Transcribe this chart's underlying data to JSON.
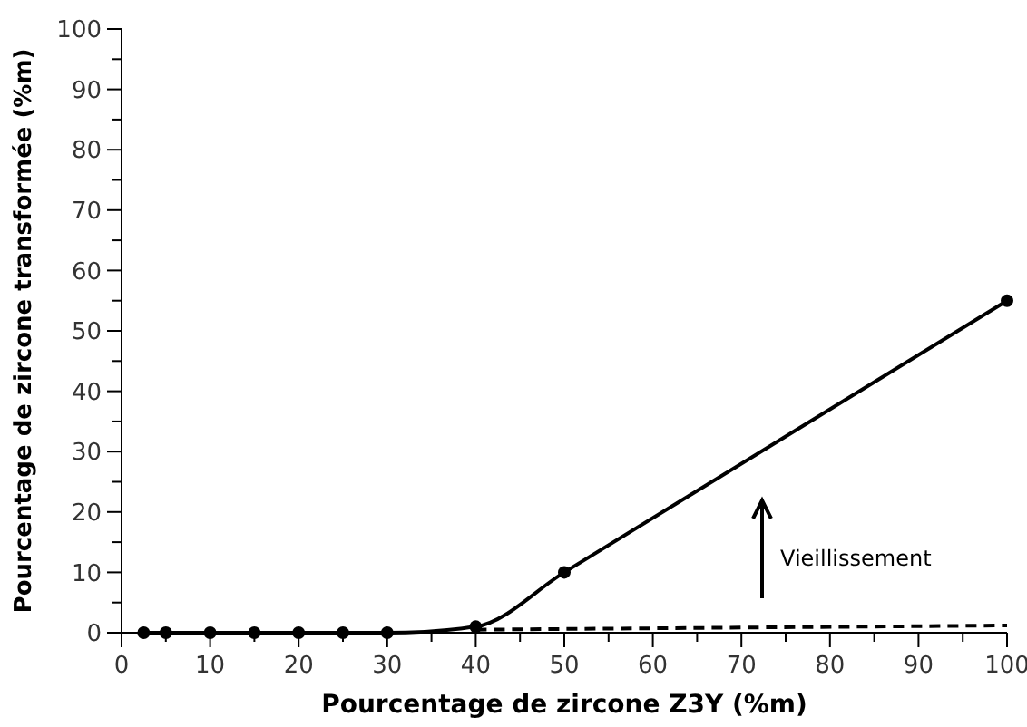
{
  "chart_data": {
    "type": "line",
    "xlabel": "Pourcentage de zircone Z3Y (%m)",
    "ylabel": "Pourcentage de zircone transformée (%m)",
    "xlim": [
      0,
      100
    ],
    "ylim": [
      0,
      100
    ],
    "xticks": [
      0,
      {
        "value": 5,
        "label": null
      },
      10,
      {
        "value": 15,
        "label": null
      },
      20,
      {
        "value": 25,
        "label": null
      },
      30,
      {
        "value": 35,
        "label": null
      },
      40,
      {
        "value": 45,
        "label": null
      },
      50,
      {
        "value": 55,
        "label": null
      },
      60,
      {
        "value": 65,
        "label": null
      },
      70,
      {
        "value": 75,
        "label": null
      },
      80,
      {
        "value": 85,
        "label": null
      },
      90,
      {
        "value": 95,
        "label": null
      },
      100
    ],
    "yticks": [
      0,
      {
        "value": 5,
        "label": null
      },
      10,
      {
        "value": 15,
        "label": null
      },
      20,
      {
        "value": 25,
        "label": null
      },
      30,
      {
        "value": 35,
        "label": null
      },
      40,
      {
        "value": 45,
        "label": null
      },
      50,
      {
        "value": 55,
        "label": null
      },
      60,
      {
        "value": 65,
        "label": null
      },
      70,
      {
        "value": 75,
        "label": null
      },
      80,
      {
        "value": 85,
        "label": null
      },
      90,
      {
        "value": 95,
        "label": null
      },
      100
    ],
    "series": [
      {
        "color": "#000000",
        "marker": "circle",
        "line_style": "solid",
        "x": [
          2.5,
          5,
          10,
          15,
          20,
          25,
          30,
          40,
          50,
          100
        ],
        "values": [
          0,
          0,
          0,
          0,
          0,
          0,
          0,
          1,
          10,
          55
        ]
      },
      {
        "color": "#000000",
        "marker": "none",
        "line_style": "dashed",
        "x": [
          40,
          100
        ],
        "values": [
          0.5,
          1.2
        ]
      }
    ],
    "annotations": [
      "Vieillissement"
    ]
  }
}
